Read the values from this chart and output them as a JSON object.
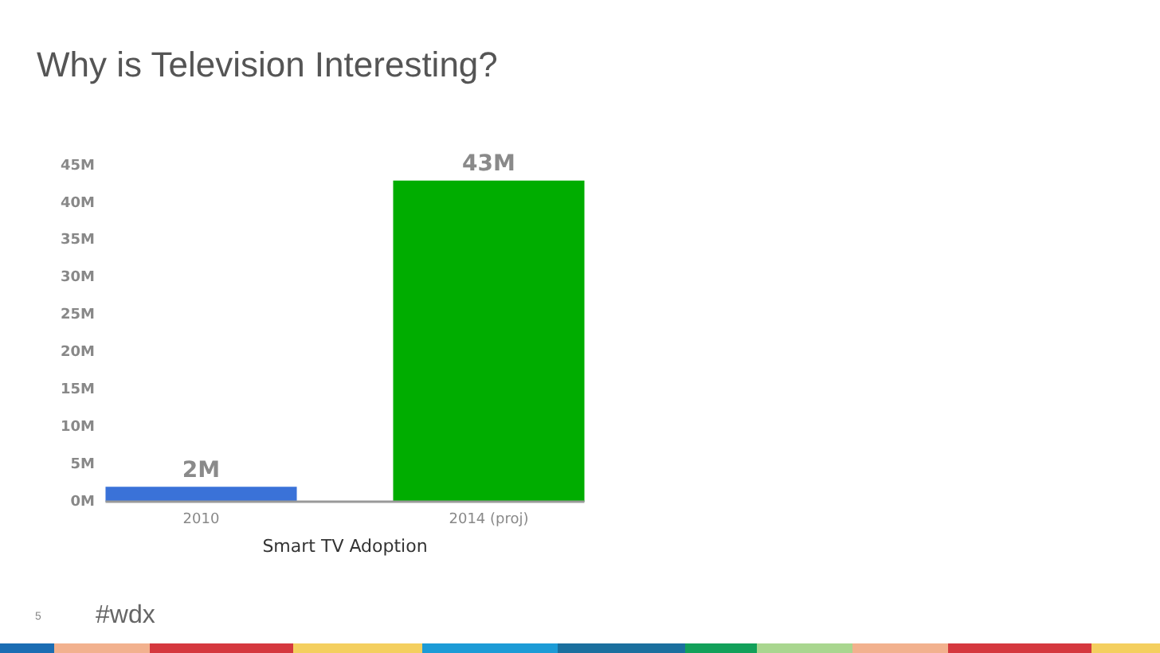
{
  "chart_data": {
    "type": "bar",
    "title": "Why is Television Interesting?",
    "xlabel": "Smart TV Adoption",
    "categories": [
      "2010",
      "2014 (proj)"
    ],
    "values": [
      2,
      43
    ],
    "colors": [
      "#3a72d8",
      "#00ad00"
    ],
    "value_labels": [
      "2M",
      "43M"
    ],
    "ylim": [
      0,
      45
    ],
    "yticks": [
      {
        "value": 0,
        "label": "0M"
      },
      {
        "value": 5,
        "label": "5M"
      },
      {
        "value": 10,
        "label": "10M"
      },
      {
        "value": 15,
        "label": "15M"
      },
      {
        "value": 20,
        "label": "20M"
      },
      {
        "value": 25,
        "label": "25M"
      },
      {
        "value": 30,
        "label": "30M"
      },
      {
        "value": 35,
        "label": "35M"
      },
      {
        "value": 40,
        "label": "40M"
      },
      {
        "value": 45,
        "label": "45M"
      }
    ],
    "annotations": [
      "5",
      "#wdx"
    ]
  }
}
